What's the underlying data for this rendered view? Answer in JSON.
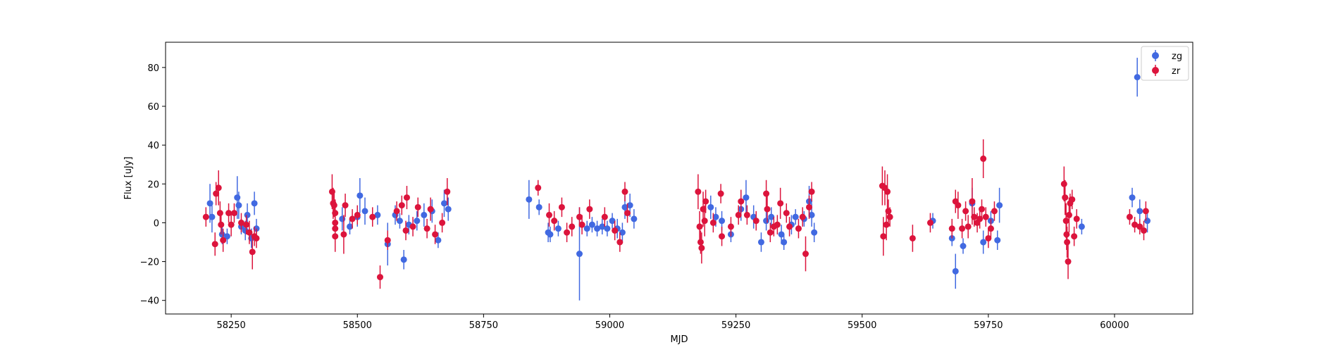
{
  "colors": {
    "zg": "#4169e1",
    "zr": "#dc143c",
    "axis": "#000000",
    "legend_border": "#cccccc"
  },
  "chart_data": {
    "type": "scatter",
    "subtype": "errorbar",
    "title": "",
    "xlabel": "MJD",
    "ylabel": "Flux [uJy]",
    "xlim": [
      58120,
      60155
    ],
    "ylim": [
      -47,
      93
    ],
    "xticks": [
      58250,
      58500,
      58750,
      59000,
      59250,
      59500,
      59750,
      60000
    ],
    "yticks": [
      -40,
      -20,
      0,
      20,
      40,
      60,
      80
    ],
    "xtick_labels": [
      "58250",
      "58500",
      "58750",
      "59000",
      "59250",
      "59500",
      "59750",
      "60000"
    ],
    "ytick_labels": [
      "−40",
      "−20",
      "0",
      "20",
      "40",
      "60",
      "80"
    ],
    "grid": false,
    "legend": {
      "placement": "top-right",
      "entries": [
        "zg",
        "zr"
      ]
    },
    "series": [
      {
        "name": "zg",
        "points": [
          [
            58208,
            10,
            10
          ],
          [
            58212,
            3,
            8
          ],
          [
            58232,
            -6,
            5
          ],
          [
            58242,
            -7,
            4
          ],
          [
            58262,
            13,
            11
          ],
          [
            58265,
            9,
            7
          ],
          [
            58270,
            -2,
            4
          ],
          [
            58278,
            -4,
            5
          ],
          [
            58282,
            4,
            6
          ],
          [
            58290,
            -8,
            5
          ],
          [
            58296,
            10,
            6
          ],
          [
            58300,
            -3,
            5
          ],
          [
            58470,
            2,
            6
          ],
          [
            58485,
            -2,
            4
          ],
          [
            58500,
            3,
            5
          ],
          [
            58505,
            14,
            9
          ],
          [
            58515,
            6,
            7
          ],
          [
            58540,
            4,
            5
          ],
          [
            58560,
            -11,
            11
          ],
          [
            58575,
            4,
            5
          ],
          [
            58584,
            1,
            4
          ],
          [
            58592,
            -19,
            5
          ],
          [
            58602,
            -1,
            5
          ],
          [
            58618,
            1,
            5
          ],
          [
            58632,
            4,
            6
          ],
          [
            58648,
            6,
            6
          ],
          [
            58660,
            -9,
            4
          ],
          [
            58672,
            10,
            7
          ],
          [
            58680,
            7,
            6
          ],
          [
            58840,
            12,
            10
          ],
          [
            58860,
            8,
            4
          ],
          [
            58878,
            -5,
            5
          ],
          [
            58882,
            -6,
            4
          ],
          [
            58898,
            -3,
            4
          ],
          [
            58940,
            -16,
            24
          ],
          [
            58955,
            -3,
            4
          ],
          [
            58965,
            -1,
            4
          ],
          [
            58975,
            -3,
            4
          ],
          [
            58985,
            -2,
            4
          ],
          [
            58995,
            -3,
            4
          ],
          [
            59005,
            1,
            4
          ],
          [
            59015,
            -3,
            5
          ],
          [
            59025,
            -5,
            5
          ],
          [
            59030,
            8,
            6
          ],
          [
            59040,
            9,
            6
          ],
          [
            59048,
            2,
            5
          ],
          [
            59200,
            8,
            6
          ],
          [
            59210,
            3,
            5
          ],
          [
            59222,
            1,
            5
          ],
          [
            59240,
            -6,
            4
          ],
          [
            59260,
            7,
            6
          ],
          [
            59270,
            13,
            9
          ],
          [
            59285,
            3,
            6
          ],
          [
            59300,
            -10,
            5
          ],
          [
            59310,
            1,
            5
          ],
          [
            59320,
            3,
            5
          ],
          [
            59340,
            -6,
            5
          ],
          [
            59345,
            -10,
            4
          ],
          [
            59360,
            -1,
            5
          ],
          [
            59368,
            3,
            4
          ],
          [
            59385,
            2,
            4
          ],
          [
            59395,
            11,
            8
          ],
          [
            59400,
            4,
            6
          ],
          [
            59405,
            -5,
            5
          ],
          [
            59640,
            1,
            4
          ],
          [
            59678,
            -8,
            4
          ],
          [
            59685,
            -25,
            9
          ],
          [
            59700,
            -12,
            4
          ],
          [
            59718,
            10,
            8
          ],
          [
            59740,
            -10,
            6
          ],
          [
            59755,
            1,
            5
          ],
          [
            59768,
            -9,
            5
          ],
          [
            59772,
            9,
            9
          ],
          [
            59935,
            -2,
            4
          ],
          [
            60035,
            13,
            5
          ],
          [
            60045,
            75,
            10
          ],
          [
            60050,
            6,
            6
          ],
          [
            60065,
            1,
            6
          ]
        ]
      },
      {
        "name": "zr",
        "points": [
          [
            58200,
            3,
            5
          ],
          [
            58218,
            -11,
            6
          ],
          [
            58220,
            15,
            6
          ],
          [
            58225,
            18,
            9
          ],
          [
            58228,
            5,
            6
          ],
          [
            58230,
            -1,
            5
          ],
          [
            58234,
            -9,
            6
          ],
          [
            58245,
            5,
            5
          ],
          [
            58250,
            -1,
            6
          ],
          [
            58256,
            5,
            5
          ],
          [
            58270,
            0,
            5
          ],
          [
            58280,
            -1,
            5
          ],
          [
            58286,
            -5,
            6
          ],
          [
            58292,
            -15,
            9
          ],
          [
            58296,
            -7,
            5
          ],
          [
            58300,
            -8,
            5
          ],
          [
            58450,
            16,
            9
          ],
          [
            58452,
            10,
            8
          ],
          [
            58454,
            9,
            6
          ],
          [
            58456,
            5,
            7
          ],
          [
            58456,
            0,
            8
          ],
          [
            58456,
            -3,
            7
          ],
          [
            58456,
            -7,
            8
          ],
          [
            58473,
            -6,
            10
          ],
          [
            58476,
            9,
            6
          ],
          [
            58490,
            2,
            5
          ],
          [
            58500,
            4,
            5
          ],
          [
            58530,
            3,
            5
          ],
          [
            58545,
            -28,
            6
          ],
          [
            58560,
            -9,
            5
          ],
          [
            58578,
            6,
            5
          ],
          [
            58588,
            9,
            5
          ],
          [
            58596,
            -4,
            5
          ],
          [
            58598,
            13,
            6
          ],
          [
            58610,
            -2,
            5
          ],
          [
            58620,
            8,
            5
          ],
          [
            58638,
            -3,
            5
          ],
          [
            58645,
            7,
            6
          ],
          [
            58654,
            -6,
            5
          ],
          [
            58668,
            0,
            5
          ],
          [
            58678,
            16,
            7
          ],
          [
            58858,
            18,
            4
          ],
          [
            58880,
            4,
            6
          ],
          [
            58890,
            1,
            5
          ],
          [
            58905,
            8,
            5
          ],
          [
            58915,
            -5,
            5
          ],
          [
            58925,
            -2,
            5
          ],
          [
            58940,
            3,
            5
          ],
          [
            58945,
            -1,
            5
          ],
          [
            58960,
            7,
            5
          ],
          [
            58990,
            3,
            5
          ],
          [
            59010,
            -4,
            5
          ],
          [
            59020,
            -10,
            5
          ],
          [
            59030,
            16,
            5
          ],
          [
            59035,
            5,
            5
          ],
          [
            59175,
            16,
            9
          ],
          [
            59178,
            -2,
            8
          ],
          [
            59180,
            -10,
            6
          ],
          [
            59182,
            -13,
            8
          ],
          [
            59185,
            7,
            9
          ],
          [
            59188,
            1,
            8
          ],
          [
            59190,
            11,
            6
          ],
          [
            59205,
            0,
            5
          ],
          [
            59220,
            15,
            5
          ],
          [
            59222,
            -7,
            5
          ],
          [
            59240,
            -2,
            5
          ],
          [
            59255,
            4,
            5
          ],
          [
            59260,
            11,
            6
          ],
          [
            59272,
            4,
            5
          ],
          [
            59290,
            1,
            5
          ],
          [
            59310,
            15,
            7
          ],
          [
            59312,
            7,
            7
          ],
          [
            59318,
            -5,
            5
          ],
          [
            59325,
            -2,
            5
          ],
          [
            59332,
            -1,
            5
          ],
          [
            59338,
            10,
            8
          ],
          [
            59350,
            5,
            5
          ],
          [
            59356,
            -2,
            5
          ],
          [
            59374,
            -3,
            5
          ],
          [
            59382,
            3,
            5
          ],
          [
            59388,
            -16,
            9
          ],
          [
            59395,
            8,
            6
          ],
          [
            59400,
            16,
            5
          ],
          [
            59540,
            19,
            10
          ],
          [
            59542,
            -7,
            10
          ],
          [
            59545,
            18,
            9
          ],
          [
            59548,
            -1,
            8
          ],
          [
            59550,
            16,
            9
          ],
          [
            59552,
            6,
            6
          ],
          [
            59555,
            3,
            5
          ],
          [
            59600,
            -8,
            7
          ],
          [
            59635,
            0,
            5
          ],
          [
            59678,
            -3,
            5
          ],
          [
            59685,
            11,
            6
          ],
          [
            59690,
            9,
            7
          ],
          [
            59698,
            -3,
            5
          ],
          [
            59705,
            6,
            5
          ],
          [
            59710,
            -2,
            6
          ],
          [
            59718,
            11,
            12
          ],
          [
            59722,
            3,
            5
          ],
          [
            59728,
            0,
            5
          ],
          [
            59733,
            2,
            5
          ],
          [
            59737,
            7,
            5
          ],
          [
            59740,
            33,
            10
          ],
          [
            59745,
            3,
            5
          ],
          [
            59750,
            -8,
            5
          ],
          [
            59755,
            -3,
            5
          ],
          [
            59762,
            6,
            5
          ],
          [
            59900,
            20,
            9
          ],
          [
            59902,
            13,
            9
          ],
          [
            59904,
            1,
            9
          ],
          [
            59905,
            -6,
            8
          ],
          [
            59906,
            -10,
            8
          ],
          [
            59908,
            -20,
            9
          ],
          [
            59910,
            4,
            9
          ],
          [
            59912,
            10,
            5
          ],
          [
            59916,
            12,
            5
          ],
          [
            59920,
            -7,
            5
          ],
          [
            59925,
            2,
            5
          ],
          [
            60030,
            3,
            4
          ],
          [
            60040,
            -1,
            4
          ],
          [
            60050,
            -2,
            4
          ],
          [
            60058,
            -4,
            5
          ],
          [
            60062,
            6,
            5
          ]
        ]
      }
    ]
  }
}
